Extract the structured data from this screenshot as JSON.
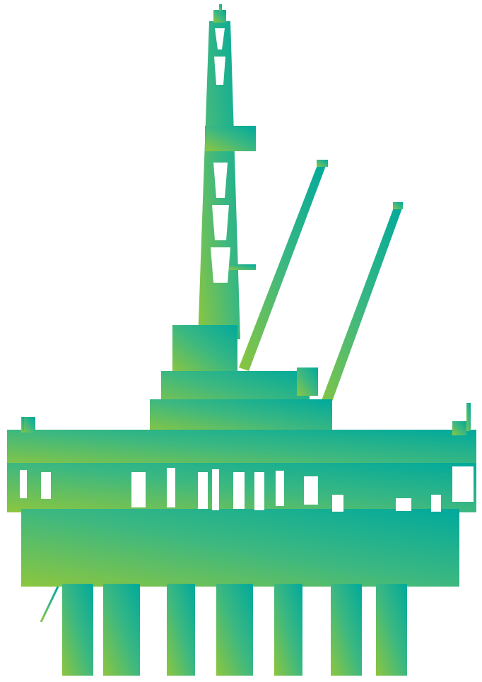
{
  "image": {
    "subject": "oil-rig-silhouette-icon",
    "gradient": {
      "start_color": "#8CC63F",
      "mid_color": "#3DB880",
      "end_color": "#00A99D"
    },
    "background_color": "#FFFFFF"
  }
}
